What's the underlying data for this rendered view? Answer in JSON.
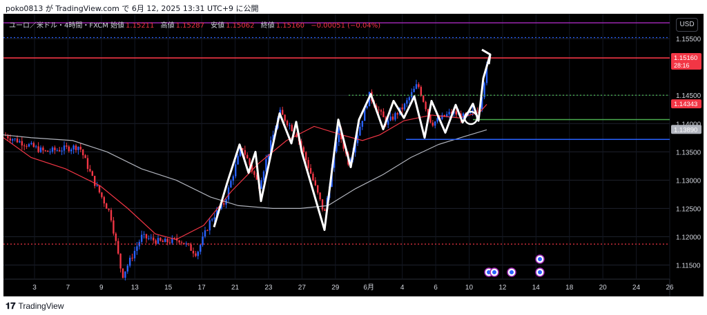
{
  "header": {
    "text": "poko0813 が TradingView.com で 6月 12, 2025 13:31 UTC+9 に公開"
  },
  "legend": {
    "symbol": "ユーロ／米ドル・4時間・FXCM",
    "open_label": "始値",
    "open": "1.15211",
    "high_label": "高値",
    "high": "1.15287",
    "low_label": "安値",
    "low": "1.15062",
    "close_label": "終値",
    "close": "1.15160",
    "change": "−0.00051 (−0.04%)"
  },
  "currency_button": "USD",
  "footer": {
    "logo_mark": "𝟏𝟕",
    "brand": "TradingView"
  },
  "chart_data": {
    "type": "line",
    "title": "ユーロ／米ドル・4時間・FXCM",
    "y_ticks": [
      "1.15500",
      "1.14500",
      "1.14000",
      "1.13500",
      "1.13000",
      "1.12500",
      "1.12000",
      "1.11500"
    ],
    "x_ticks": [
      "3",
      "7",
      "9",
      "13",
      "15",
      "17",
      "21",
      "23",
      "27",
      "29",
      "6月",
      "4",
      "6",
      "10",
      "12",
      "14",
      "18",
      "20",
      "24",
      "26"
    ],
    "ylim": [
      1.1125,
      1.1594
    ],
    "price_labels": [
      {
        "text": "1.15160",
        "sub": "28:16",
        "value": 1.1516,
        "color": "#f23645"
      },
      {
        "text": "1.14343",
        "value": 1.14343,
        "color": "#f23645"
      },
      {
        "text": "1.13890",
        "value": 1.1389,
        "color": "#b2b5be"
      }
    ],
    "series": [
      {
        "role": "drawn-path",
        "color": "#ffffff",
        "points": [
          [
            "2025-05-20",
            1.1217
          ],
          [
            "2025-05-21",
            1.1295
          ],
          [
            "2025-05-22",
            1.1363
          ],
          [
            "2025-05-23",
            1.1313
          ],
          [
            "2025-05-24",
            1.135
          ],
          [
            "2025-05-26",
            1.1263
          ],
          [
            "2025-05-27",
            1.1418
          ],
          [
            "2025-05-28",
            1.1365
          ],
          [
            "2025-05-28b",
            1.1403
          ],
          [
            "2025-05-29",
            1.135
          ],
          [
            "2025-05-29b",
            1.1212
          ],
          [
            "2025-05-30",
            1.1407
          ],
          [
            "2025-05-31",
            1.1323
          ],
          [
            "2025-06-01",
            1.1407
          ],
          [
            "2025-06-02",
            1.1452
          ],
          [
            "2025-06-03",
            1.139
          ],
          [
            "2025-06-04",
            1.144
          ],
          [
            "2025-06-05",
            1.141
          ],
          [
            "2025-06-06",
            1.1448
          ],
          [
            "2025-06-07",
            1.1375
          ],
          [
            "2025-06-08",
            1.144
          ],
          [
            "2025-06-09",
            1.1384
          ],
          [
            "2025-06-10",
            1.1433
          ],
          [
            "2025-06-10b",
            1.1402
          ],
          [
            "2025-06-11",
            1.1435
          ],
          [
            "2025-06-11b",
            1.1405
          ],
          [
            "2025-06-12",
            1.148
          ],
          [
            "2025-06-12b",
            1.1522
          ]
        ]
      },
      {
        "role": "moving-average-short",
        "color": "#f23645",
        "points": [
          [
            0,
            1.1375
          ],
          [
            40,
            1.134
          ],
          [
            90,
            1.132
          ],
          [
            140,
            1.129
          ],
          [
            180,
            1.125
          ],
          [
            220,
            1.1205
          ],
          [
            250,
            1.1195
          ],
          [
            290,
            1.122
          ],
          [
            330,
            1.128
          ],
          [
            370,
            1.133
          ],
          [
            410,
            1.137
          ],
          [
            450,
            1.1395
          ],
          [
            490,
            1.138
          ],
          [
            520,
            1.137
          ],
          [
            545,
            1.138
          ],
          [
            580,
            1.1405
          ],
          [
            620,
            1.1415
          ],
          [
            660,
            1.141
          ],
          [
            690,
            1.142
          ],
          [
            700,
            1.1434
          ]
        ]
      },
      {
        "role": "moving-average-long",
        "color": "#b2b5be",
        "points": [
          [
            0,
            1.138
          ],
          [
            40,
            1.1375
          ],
          [
            100,
            1.137
          ],
          [
            150,
            1.135
          ],
          [
            200,
            1.132
          ],
          [
            250,
            1.13
          ],
          [
            300,
            1.127
          ],
          [
            340,
            1.1255
          ],
          [
            390,
            1.125
          ],
          [
            430,
            1.125
          ],
          [
            470,
            1.1255
          ],
          [
            510,
            1.1285
          ],
          [
            550,
            1.131
          ],
          [
            590,
            1.134
          ],
          [
            630,
            1.1363
          ],
          [
            670,
            1.1378
          ],
          [
            700,
            1.1389
          ]
        ]
      }
    ],
    "horizontal_lines": [
      {
        "value": 1.1578,
        "color": "#9c27b0",
        "style": "solid"
      },
      {
        "value": 1.1552,
        "color": "#2962ff",
        "style": "dotted"
      },
      {
        "value": 1.1516,
        "color": "#f23645",
        "style": "solid"
      },
      {
        "value": 1.145,
        "color": "#4caf50",
        "style": "dotted",
        "from": 500,
        "to": 965
      },
      {
        "value": 1.1407,
        "color": "#4caf50",
        "style": "solid",
        "from": 680,
        "to": 965
      },
      {
        "value": 1.1372,
        "color": "#2962ff",
        "style": "solid",
        "from": 583,
        "to": 965
      },
      {
        "value": 1.1187,
        "color": "#f23645",
        "style": "dotted"
      }
    ],
    "grid": true
  }
}
